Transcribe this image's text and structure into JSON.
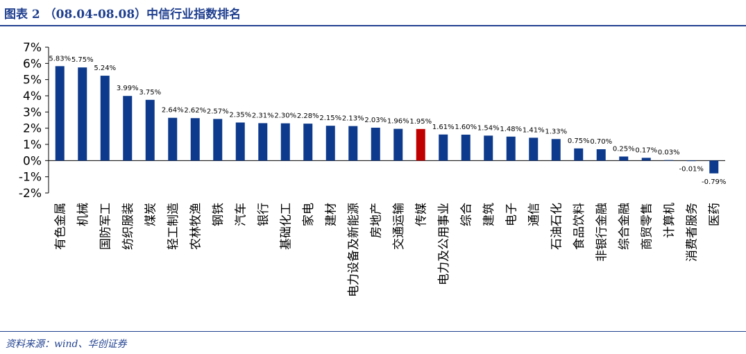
{
  "header": {
    "title": "图表 2 （08.04-08.08）中信行业指数排名"
  },
  "footer": {
    "source": "资料来源：wind、华创证券"
  },
  "colors": {
    "bar": "#0d3a8c",
    "highlight": "#c00000",
    "accent": "#1f3f8f"
  },
  "chart_data": {
    "type": "bar",
    "title": "（08.04-08.08）中信行业指数排名",
    "xlabel": "",
    "ylabel": "",
    "ylim": [
      -2,
      7
    ],
    "yticks": [
      "7%",
      "6%",
      "5%",
      "4%",
      "3%",
      "2%",
      "1%",
      "0%",
      "-1%",
      "-2%"
    ],
    "yticks_values": [
      7,
      6,
      5,
      4,
      3,
      2,
      1,
      0,
      -1,
      -2
    ],
    "highlight_category": "传媒",
    "categories": [
      "有色金属",
      "机械",
      "国防军工",
      "纺织服装",
      "煤炭",
      "轻工制造",
      "农林牧渔",
      "钢铁",
      "汽车",
      "银行",
      "基础化工",
      "家电",
      "建材",
      "电力设备及新能源",
      "房地产",
      "交通运输",
      "传媒",
      "电力及公用事业",
      "综合",
      "建筑",
      "电子",
      "通信",
      "石油石化",
      "食品饮料",
      "非银行金融",
      "综合金融",
      "商贸零售",
      "计算机",
      "消费者服务",
      "医药"
    ],
    "values": [
      5.83,
      5.75,
      5.24,
      3.99,
      3.75,
      2.64,
      2.62,
      2.57,
      2.35,
      2.31,
      2.3,
      2.28,
      2.15,
      2.13,
      2.03,
      1.96,
      1.95,
      1.61,
      1.6,
      1.54,
      1.48,
      1.41,
      1.33,
      0.75,
      0.7,
      0.25,
      0.17,
      0.03,
      -0.01,
      -0.79
    ],
    "value_labels": [
      "5.83%",
      "5.75%",
      "5.24%",
      "3.99%",
      "3.75%",
      "2.64%",
      "2.62%",
      "2.57%",
      "2.35%",
      "2.31%",
      "2.30%",
      "2.28%",
      "2.15%",
      "2.13%",
      "2.03%",
      "1.96%",
      "1.95%",
      "1.61%",
      "1.60%",
      "1.54%",
      "1.48%",
      "1.41%",
      "1.33%",
      "0.75%",
      "0.70%",
      "0.25%",
      "0.17%",
      "0.03%",
      "-0.01%",
      "-0.79%"
    ]
  }
}
